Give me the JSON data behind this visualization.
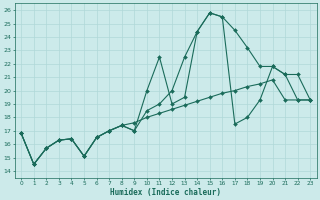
{
  "bg_color": "#cceaea",
  "grid_color": "#b0d8d8",
  "line_color": "#1a6b5a",
  "xlabel": "Humidex (Indice chaleur)",
  "xlim": [
    -0.5,
    23.5
  ],
  "ylim": [
    13.5,
    26.5
  ],
  "yticks": [
    14,
    15,
    16,
    17,
    18,
    19,
    20,
    21,
    22,
    23,
    24,
    25,
    26
  ],
  "xticks": [
    0,
    1,
    2,
    3,
    4,
    5,
    6,
    7,
    8,
    9,
    10,
    11,
    12,
    13,
    14,
    15,
    16,
    17,
    18,
    19,
    20,
    21,
    22,
    23
  ],
  "line1_x": [
    0,
    1,
    2,
    3,
    4,
    5,
    6,
    7,
    8,
    9,
    10,
    11,
    12,
    13,
    14,
    15,
    16,
    17,
    18,
    19,
    20,
    21,
    22,
    23
  ],
  "line1_y": [
    16.8,
    14.5,
    15.7,
    16.3,
    16.4,
    15.1,
    16.5,
    17.0,
    17.4,
    17.0,
    20.0,
    22.5,
    19.0,
    19.5,
    24.4,
    25.8,
    25.5,
    17.5,
    18.0,
    19.3,
    21.8,
    21.2,
    21.2,
    19.3
  ],
  "line2_x": [
    0,
    1,
    2,
    3,
    4,
    5,
    6,
    7,
    8,
    9,
    10,
    11,
    12,
    13,
    14,
    15,
    16,
    17,
    18,
    19,
    20,
    21,
    22,
    23
  ],
  "line2_y": [
    16.8,
    14.5,
    15.7,
    16.3,
    16.4,
    15.1,
    16.5,
    17.0,
    17.4,
    17.6,
    18.0,
    18.3,
    18.6,
    18.9,
    19.2,
    19.5,
    19.8,
    20.0,
    20.3,
    20.5,
    20.8,
    19.3,
    19.3,
    19.3
  ],
  "line3_x": [
    0,
    1,
    2,
    3,
    4,
    5,
    6,
    7,
    8,
    9,
    10,
    11,
    12,
    13,
    14,
    15,
    16,
    17,
    18,
    19,
    20,
    21,
    22,
    23
  ],
  "line3_y": [
    16.8,
    14.5,
    15.7,
    16.3,
    16.4,
    15.1,
    16.5,
    17.0,
    17.4,
    17.0,
    18.5,
    19.0,
    20.0,
    22.5,
    24.4,
    25.8,
    25.5,
    24.5,
    23.2,
    21.8,
    21.8,
    21.2,
    19.3,
    19.3
  ]
}
